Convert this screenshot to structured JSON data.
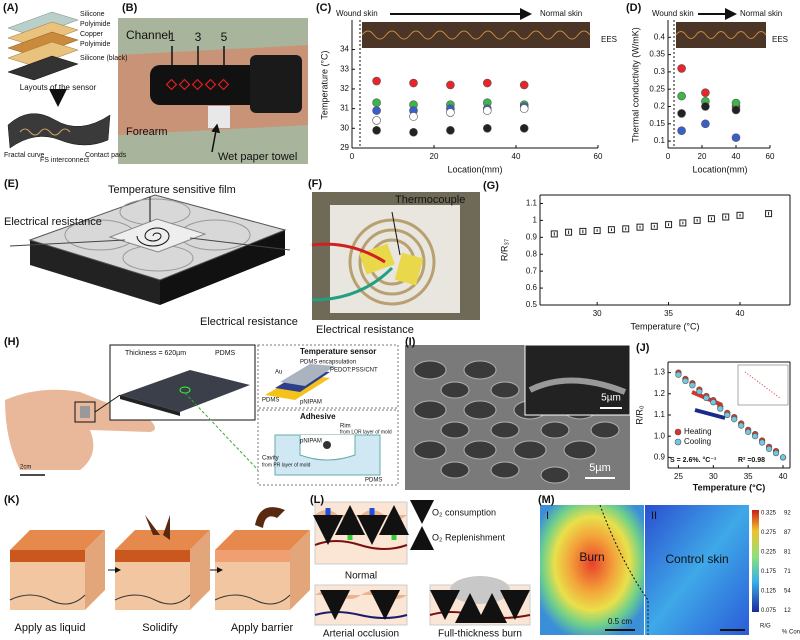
{
  "panel_labels": [
    "(A)",
    "(B)",
    "(C)",
    "(D)",
    "(E)",
    "(F)",
    "(G)",
    "(H)",
    "(I)",
    "(J)",
    "(K)",
    "(L)",
    "(M)"
  ],
  "a": {
    "layers": [
      "Silicone",
      "Polyimide",
      "Copper",
      "Polyimide",
      "Silicone (black)"
    ],
    "caption": "Layouts of the sensor",
    "parts": [
      "Fractal curve",
      "FS interconnect",
      "Contact pads"
    ]
  },
  "b": {
    "channel": "Channel",
    "numbers": [
      "1",
      "3",
      "5"
    ],
    "forearm": "Forearm",
    "towel": "Wet paper towel"
  },
  "e": {
    "film": "Temperature sensitive film",
    "resistance_left": "Electrical resistance",
    "resistance_right": "Electrical resistance"
  },
  "f": {
    "thermocouple": "Thermocouple",
    "resistance": "Electrical resistance"
  },
  "h": {
    "thickness": "Thickness = 620µm",
    "pdms_legend": "PDMS",
    "sensor_title": "Temperature sensor",
    "layers": [
      "PDMS encapsulation",
      "PEDOT:PSS/CNT",
      "PDMS",
      "pNIPAM",
      "Au"
    ],
    "adhesive_title": "Adhesive",
    "rim": "Rim",
    "rim_note": "from LOR layer of mold",
    "pnipam": "pNIPAM",
    "cavity": "Cavity",
    "cavity_note": "from PR layer of mold",
    "pdms": "PDMS",
    "scale": "2cm"
  },
  "i": {
    "scale_inset": "5µm",
    "scale_main": "5µm"
  },
  "k": {
    "steps": [
      "Apply as liquid",
      "Solidify",
      "Apply barrier"
    ]
  },
  "l": {
    "legend": [
      "O₂ consumption",
      "O₂ Replenishment"
    ],
    "cases": [
      "Normal",
      "Arterial occlusion",
      "Full-thickness burn"
    ]
  },
  "m": {
    "regions": [
      "I",
      "II"
    ],
    "labels": [
      "Burn",
      "Control skin"
    ],
    "scale": "0.5 cm",
    "colorbar_left": [
      "0.325",
      "0.275",
      "0.225",
      "0.175",
      "0.125",
      "0.075"
    ],
    "colorbar_right": [
      "92",
      "87",
      "81",
      "71",
      "54",
      "12"
    ],
    "left_unit": "R/G",
    "right_unit": "% Con"
  },
  "chart_data": [
    {
      "type": "scatter",
      "ylabel": "Temperature (°C)",
      "xlabel": "Location(mm)",
      "annotations": [
        "Wound skin",
        "Normal skin",
        "EES"
      ],
      "x": [
        6,
        15,
        24,
        33,
        42
      ],
      "series": [
        {
          "color": "#e8262a",
          "values": [
            32.4,
            32.3,
            32.2,
            32.3,
            32.2
          ]
        },
        {
          "color": "#3db54a",
          "values": [
            31.3,
            31.2,
            31.2,
            31.3,
            31.2
          ]
        },
        {
          "color": "#3a5fcd",
          "values": [
            30.9,
            30.9,
            31.0,
            31.0,
            31.1
          ]
        },
        {
          "color": "#ffffff",
          "values": [
            30.4,
            30.6,
            30.8,
            30.9,
            31.0
          ]
        },
        {
          "color": "#222222",
          "values": [
            29.9,
            29.8,
            29.9,
            30.0,
            30.0
          ]
        }
      ],
      "xlim": [
        0,
        60
      ],
      "ylim": [
        29,
        35.5
      ],
      "xticks": [
        0,
        20,
        40,
        60
      ],
      "yticks": [
        29,
        30,
        31,
        32,
        33,
        34
      ]
    },
    {
      "type": "scatter",
      "ylabel": "Thermal conductivity (W/mK)",
      "xlabel": "Location(mm)",
      "annotations": [
        "Wound skin",
        "Normal skin",
        "EES"
      ],
      "x": [
        8,
        22,
        40
      ],
      "series": [
        {
          "color": "#e8262a",
          "values": [
            0.31,
            0.24,
            0.2
          ]
        },
        {
          "color": "#3db54a",
          "values": [
            0.23,
            0.215,
            0.21
          ]
        },
        {
          "color": "#222222",
          "values": [
            0.18,
            0.2,
            0.19
          ]
        },
        {
          "color": "#3a5fcd",
          "values": [
            0.13,
            0.15,
            0.11
          ]
        }
      ],
      "xlim": [
        0,
        60
      ],
      "ylim": [
        0.08,
        0.45
      ],
      "xticks": [
        0,
        20,
        40,
        60
      ],
      "yticks": [
        0.1,
        0.15,
        0.2,
        0.25,
        0.3,
        0.35,
        0.4
      ]
    },
    {
      "type": "scatter",
      "marker": "square-open",
      "ylabel": "R/R₃₇",
      "xlabel": "Temperature (°C)",
      "x": [
        27,
        28,
        29,
        30,
        31,
        32,
        33,
        34,
        35,
        36,
        37,
        38,
        39,
        40,
        42
      ],
      "values": [
        0.92,
        0.93,
        0.935,
        0.94,
        0.945,
        0.95,
        0.96,
        0.965,
        0.975,
        0.985,
        1.0,
        1.01,
        1.02,
        1.03,
        1.04
      ],
      "errors": [
        0.01,
        0.01,
        0.01,
        0.008,
        0.008,
        0.008,
        0.008,
        0.008,
        0.008,
        0.008,
        0.008,
        0.008,
        0.008,
        0.008,
        0.01
      ],
      "color": "#222222",
      "xlim": [
        26,
        43.5
      ],
      "ylim": [
        0.5,
        1.15
      ],
      "xticks": [
        30,
        35,
        40
      ],
      "yticks": [
        0.5,
        0.6,
        0.7,
        0.8,
        0.9,
        1,
        1.1
      ]
    },
    {
      "type": "scatter",
      "ylabel": "R/R₀",
      "xlabel": "Temperature (°C)",
      "annotations": [
        "S = 2.6%. °C⁻¹",
        "R² =0.98"
      ],
      "x": [
        25,
        26,
        27,
        28,
        29,
        30,
        31,
        32,
        33,
        34,
        35,
        36,
        37,
        38,
        39,
        40
      ],
      "series": [
        {
          "name": "Heating",
          "color": "#d9342b",
          "values": [
            1.3,
            1.27,
            1.25,
            1.22,
            1.19,
            1.17,
            1.14,
            1.11,
            1.09,
            1.06,
            1.03,
            1.01,
            0.98,
            0.95,
            0.93,
            0.9
          ]
        },
        {
          "name": "Cooling",
          "color": "#6fc7e0",
          "values": [
            1.29,
            1.26,
            1.24,
            1.21,
            1.18,
            1.16,
            1.13,
            1.1,
            1.08,
            1.05,
            1.02,
            1.0,
            0.97,
            0.94,
            0.92,
            0.9
          ]
        }
      ],
      "legend": "lower left",
      "xlim": [
        23.5,
        41
      ],
      "ylim": [
        0.85,
        1.35
      ],
      "xticks": [
        25,
        30,
        35,
        40
      ],
      "yticks": [
        0.9,
        {
          "value": 1,
          "label": "1.0"
        },
        1.1,
        1.2,
        1.3
      ]
    }
  ]
}
